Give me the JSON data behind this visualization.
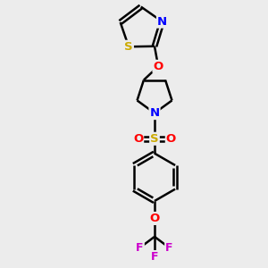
{
  "bg_color": "#ececec",
  "bond_color": "#000000",
  "atom_colors": {
    "S_thz": "#ccaa00",
    "S_sul": "#ccaa00",
    "N": "#0000ff",
    "O": "#ff0000",
    "F": "#cc00cc",
    "C": "#000000"
  },
  "bond_width": 1.8,
  "dbo": 0.022,
  "figsize": [
    3.0,
    3.0
  ],
  "dpi": 100,
  "xlim": [
    -0.6,
    0.6
  ],
  "ylim": [
    -1.5,
    1.4
  ]
}
